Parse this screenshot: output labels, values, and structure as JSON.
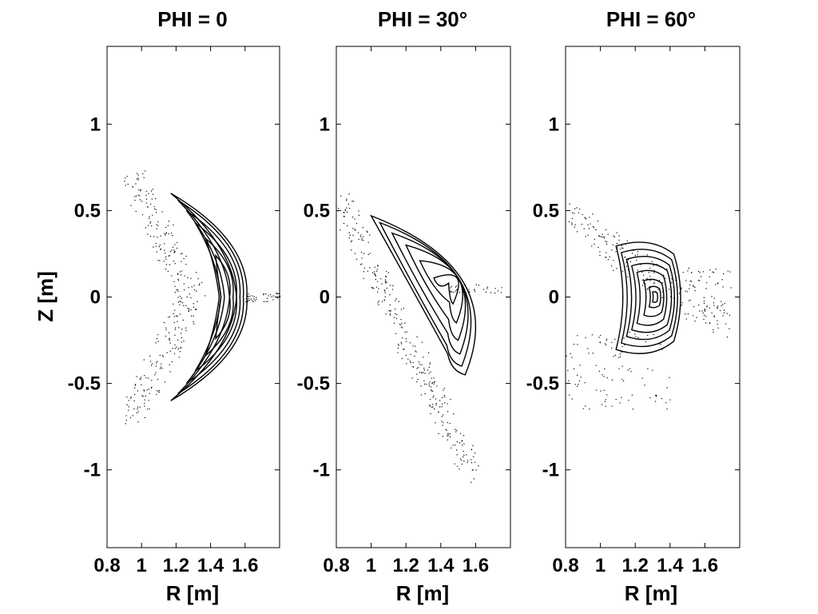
{
  "chart_data": [
    {
      "type": "scatter",
      "title": "PHI = 0",
      "xlabel": "R [m]",
      "ylabel": "Z [m]",
      "xlim": [
        0.8,
        1.8
      ],
      "ylim": [
        -1.45,
        1.45
      ],
      "xticks": [
        0.8,
        1,
        1.2,
        1.4,
        1.6
      ],
      "xtick_labels": [
        "0.8",
        "1",
        "1.2",
        "1.4",
        "1.6"
      ],
      "yticks": [
        -1,
        -0.5,
        0,
        0.5,
        1
      ],
      "ytick_labels": [
        "-1",
        "-0.5",
        "0",
        "0.5",
        "1"
      ],
      "grid": false,
      "shape": "crescent-open-left",
      "surfaces": [
        {
          "r_outer": 1.61,
          "r_inner": 1.55,
          "z_tip": 0.6,
          "r_tip": 1.17
        },
        {
          "r_outer": 1.59,
          "r_inner": 1.51,
          "z_tip": 0.56,
          "r_tip": 1.21
        },
        {
          "r_outer": 1.57,
          "r_inner": 1.48,
          "z_tip": 0.5,
          "r_tip": 1.26
        },
        {
          "r_outer": 1.55,
          "r_inner": 1.46,
          "z_tip": 0.43,
          "r_tip": 1.31
        },
        {
          "r_outer": 1.53,
          "r_inner": 1.45,
          "z_tip": 0.34,
          "r_tip": 1.37
        },
        {
          "r_outer": 1.51,
          "r_inner": 1.46,
          "z_tip": 0.24,
          "r_tip": 1.43
        }
      ]
    },
    {
      "type": "scatter",
      "title": "PHI = 30°",
      "xlabel": "R [m]",
      "ylabel": "",
      "xlim": [
        0.8,
        1.8
      ],
      "ylim": [
        -1.45,
        1.45
      ],
      "xticks": [
        0.8,
        1,
        1.2,
        1.4,
        1.6
      ],
      "xtick_labels": [
        "0.8",
        "1",
        "1.2",
        "1.4",
        "1.6"
      ],
      "yticks": [
        -1,
        -0.5,
        0,
        0.5,
        1
      ],
      "ytick_labels": [
        "-1",
        "-0.5",
        "0",
        "0.5",
        "1"
      ],
      "grid": false,
      "shape": "tilted-banana",
      "surfaces": [
        {
          "r_outer": 1.0,
          "z_top": 0.47,
          "r_bottom": 1.54,
          "z_bottom": -0.45,
          "width": 0.2
        },
        {
          "r_outer": 1.05,
          "z_top": 0.43,
          "r_bottom": 1.52,
          "z_bottom": -0.4,
          "width": 0.17
        },
        {
          "r_outer": 1.12,
          "z_top": 0.37,
          "r_bottom": 1.51,
          "z_bottom": -0.33,
          "width": 0.14
        },
        {
          "r_outer": 1.2,
          "z_top": 0.3,
          "r_bottom": 1.5,
          "z_bottom": -0.25,
          "width": 0.11
        },
        {
          "r_outer": 1.28,
          "z_top": 0.21,
          "r_bottom": 1.49,
          "z_bottom": -0.15,
          "width": 0.08
        },
        {
          "r_outer": 1.36,
          "z_top": 0.11,
          "r_bottom": 1.47,
          "z_bottom": -0.04,
          "width": 0.05
        }
      ]
    },
    {
      "type": "scatter",
      "title": "PHI = 60°",
      "xlabel": "R [m]",
      "ylabel": "",
      "xlim": [
        0.8,
        1.8
      ],
      "ylim": [
        -1.45,
        1.45
      ],
      "xticks": [
        0.8,
        1,
        1.2,
        1.4,
        1.6
      ],
      "xtick_labels": [
        "0.8",
        "1",
        "1.2",
        "1.4",
        "1.6"
      ],
      "yticks": [
        -1,
        -0.5,
        0,
        0.5,
        1
      ],
      "ytick_labels": [
        "-1",
        "-0.5",
        "0",
        "0.5",
        "1"
      ],
      "grid": false,
      "shape": "bean",
      "surfaces": [
        {
          "r_left": 1.09,
          "r_right": 1.48,
          "z_top": 0.31,
          "z_bottom": -0.32
        },
        {
          "r_left": 1.12,
          "r_right": 1.46,
          "z_top": 0.27,
          "z_bottom": -0.28
        },
        {
          "r_left": 1.15,
          "r_right": 1.44,
          "z_top": 0.23,
          "z_bottom": -0.24
        },
        {
          "r_left": 1.18,
          "r_right": 1.42,
          "z_top": 0.19,
          "z_bottom": -0.2
        },
        {
          "r_left": 1.21,
          "r_right": 1.39,
          "z_top": 0.15,
          "z_bottom": -0.16
        },
        {
          "r_left": 1.25,
          "r_right": 1.37,
          "z_top": 0.1,
          "z_bottom": -0.11
        },
        {
          "r_left": 1.28,
          "r_right": 1.35,
          "z_top": 0.06,
          "z_bottom": -0.06
        },
        {
          "r_left": 1.3,
          "r_right": 1.33,
          "z_top": 0.03,
          "z_bottom": -0.03
        }
      ]
    }
  ]
}
